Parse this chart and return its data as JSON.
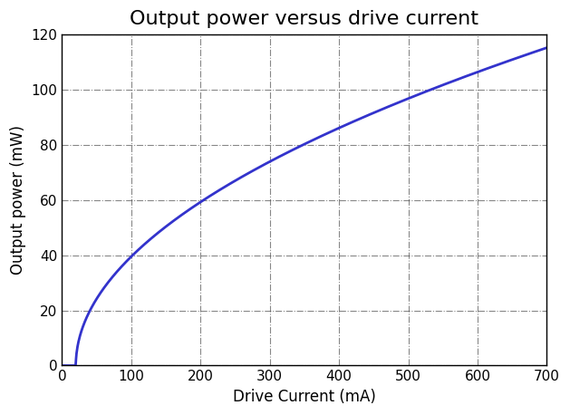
{
  "title": "Output power versus drive current",
  "xlabel": "Drive Current (mA)",
  "ylabel": "Output power (mW)",
  "xlim": [
    0,
    700
  ],
  "ylim": [
    0,
    120
  ],
  "xticks": [
    0,
    100,
    200,
    300,
    400,
    500,
    600,
    700
  ],
  "yticks": [
    0,
    20,
    40,
    60,
    80,
    100,
    120
  ],
  "line_color": "#3333cc",
  "line_width": 2.0,
  "curve_a": 4.42,
  "curve_x0": 20,
  "curve_power": 0.5,
  "background_color": "#ffffff",
  "grid_color": "#555555",
  "grid_alpha": 0.7,
  "grid_linestyle": "-.",
  "title_fontsize": 16,
  "label_fontsize": 12
}
